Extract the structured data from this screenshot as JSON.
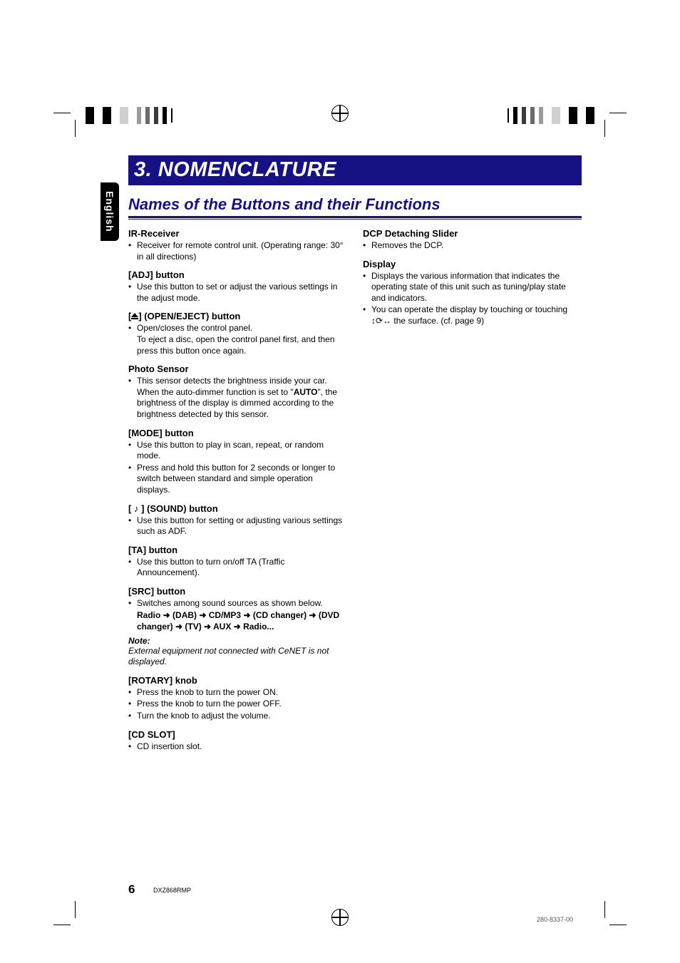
{
  "colors": {
    "banner_bg": "#161184",
    "banner_fg": "#ffffff",
    "body_text": "#000000",
    "page_bg": "#ffffff",
    "reg_gray": "#b0b0b0",
    "reg_dark": "#4c4c4c"
  },
  "typography": {
    "banner_fontsize": 29,
    "section_fontsize": 22,
    "subhead_fontsize": 13,
    "body_fontsize": 12,
    "pagenum_fontsize": 17,
    "small_fontsize": 9
  },
  "side_tab": "English",
  "chapter": "3. NOMENCLATURE",
  "section": "Names of the Buttons and their Functions",
  "left_column": [
    {
      "head": "IR-Receiver",
      "bullets": [
        "Receiver for remote control unit. (Operating range: 30° in all directions)"
      ]
    },
    {
      "head": "[ADJ] button",
      "bullets": [
        "Use this button to set or adjust the various settings in the adjust mode."
      ]
    },
    {
      "head_html": "[EJECT] (OPEN/EJECT) button",
      "head_prefix": "[",
      "head_suffix": "] (OPEN/EJECT) button",
      "bullets": [
        "Open/closes the control panel."
      ],
      "subline": "To eject a disc, open the control panel first, and then press this button once again."
    },
    {
      "head": "Photo Sensor",
      "bullets_html": [
        "This sensor detects the brightness inside your car. When the auto-dimmer function is set to \"<b>AUTO</b>\", the brightness of the display is dimmed according to the brightness detected by this sensor."
      ]
    },
    {
      "head": "[MODE] button",
      "bullets": [
        "Use this button to play in scan, repeat, or random mode.",
        "Press and hold this button for 2 seconds or longer to switch between standard and simple operation displays."
      ]
    },
    {
      "head_html": "[ ♪ ] (SOUND) button",
      "bullets": [
        "Use this button for setting or adjusting various settings such as ADF."
      ]
    },
    {
      "head": "[TA] button",
      "bullets": [
        "Use this button to turn on/off TA (Traffic Announcement)."
      ]
    },
    {
      "head": "[SRC] button",
      "bullets": [
        "Switches among sound sources as shown below."
      ],
      "chain": "Radio ➜ (DAB) ➜ CD/MP3 ➜ (CD changer) ➜ (DVD changer) ➜ (TV) ➜ AUX ➜ Radio...",
      "note_head": "Note:",
      "note_body": "External equipment not connected with CeNET is not displayed."
    },
    {
      "head": "[ROTARY] knob",
      "bullets": [
        "Press the knob to turn the power ON.",
        "Press the knob to turn the power OFF.",
        "Turn the knob to adjust the volume."
      ]
    },
    {
      "head": "[CD SLOT]",
      "bullets": [
        "CD insertion slot."
      ]
    }
  ],
  "right_column": [
    {
      "head": "DCP Detaching Slider",
      "bullets": [
        "Removes the DCP."
      ]
    },
    {
      "head": "Display",
      "bullets": [
        "Displays the various information that indicates the operating state of this unit such as tuning/play state and indicators.",
        "You can operate the display by touching or touching ↕⟳↔ the surface. (cf. page 9)"
      ]
    }
  ],
  "page_number": "6",
  "model_id": "DXZ868RMP",
  "doc_id": "280-8337-00"
}
